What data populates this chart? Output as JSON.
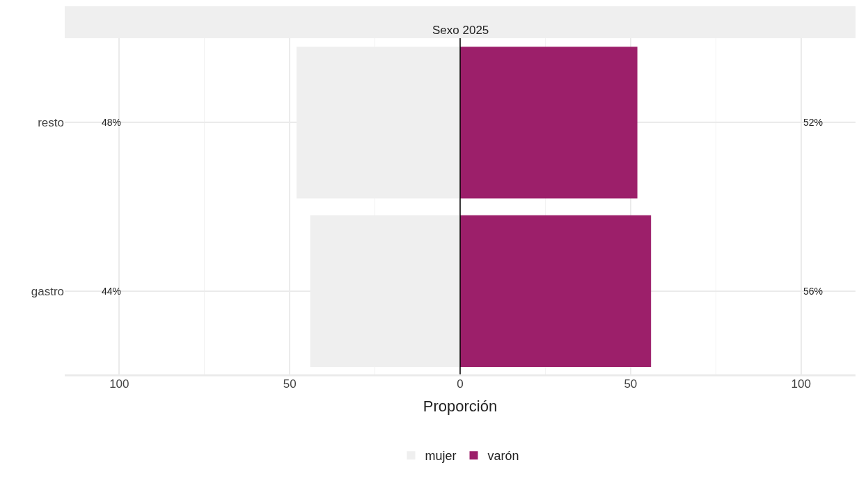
{
  "chart_data": {
    "type": "bar",
    "orientation": "horizontal",
    "title": "Sexo 2025",
    "xlabel": "Proporción",
    "categories": [
      "resto",
      "gastro"
    ],
    "series": [
      {
        "name": "mujer",
        "color": "#efefef",
        "values": [
          48,
          44
        ],
        "base": [
          -48,
          -44
        ],
        "value_labels": [
          "48%",
          "44%"
        ]
      },
      {
        "name": "varón",
        "color": "#9c1f6a",
        "values": [
          52,
          56
        ],
        "base": [
          0,
          0
        ],
        "value_labels": [
          "52%",
          "56%"
        ]
      }
    ],
    "xlim": [
      -116,
      116
    ],
    "xticks": [
      {
        "value": -100,
        "label": "100"
      },
      {
        "value": -50,
        "label": "50"
      },
      0,
      50,
      100
    ],
    "ref_lines": [
      {
        "axis": "x",
        "value": 0,
        "color": "#000000"
      }
    ],
    "grid": true,
    "legend": "bottom"
  }
}
